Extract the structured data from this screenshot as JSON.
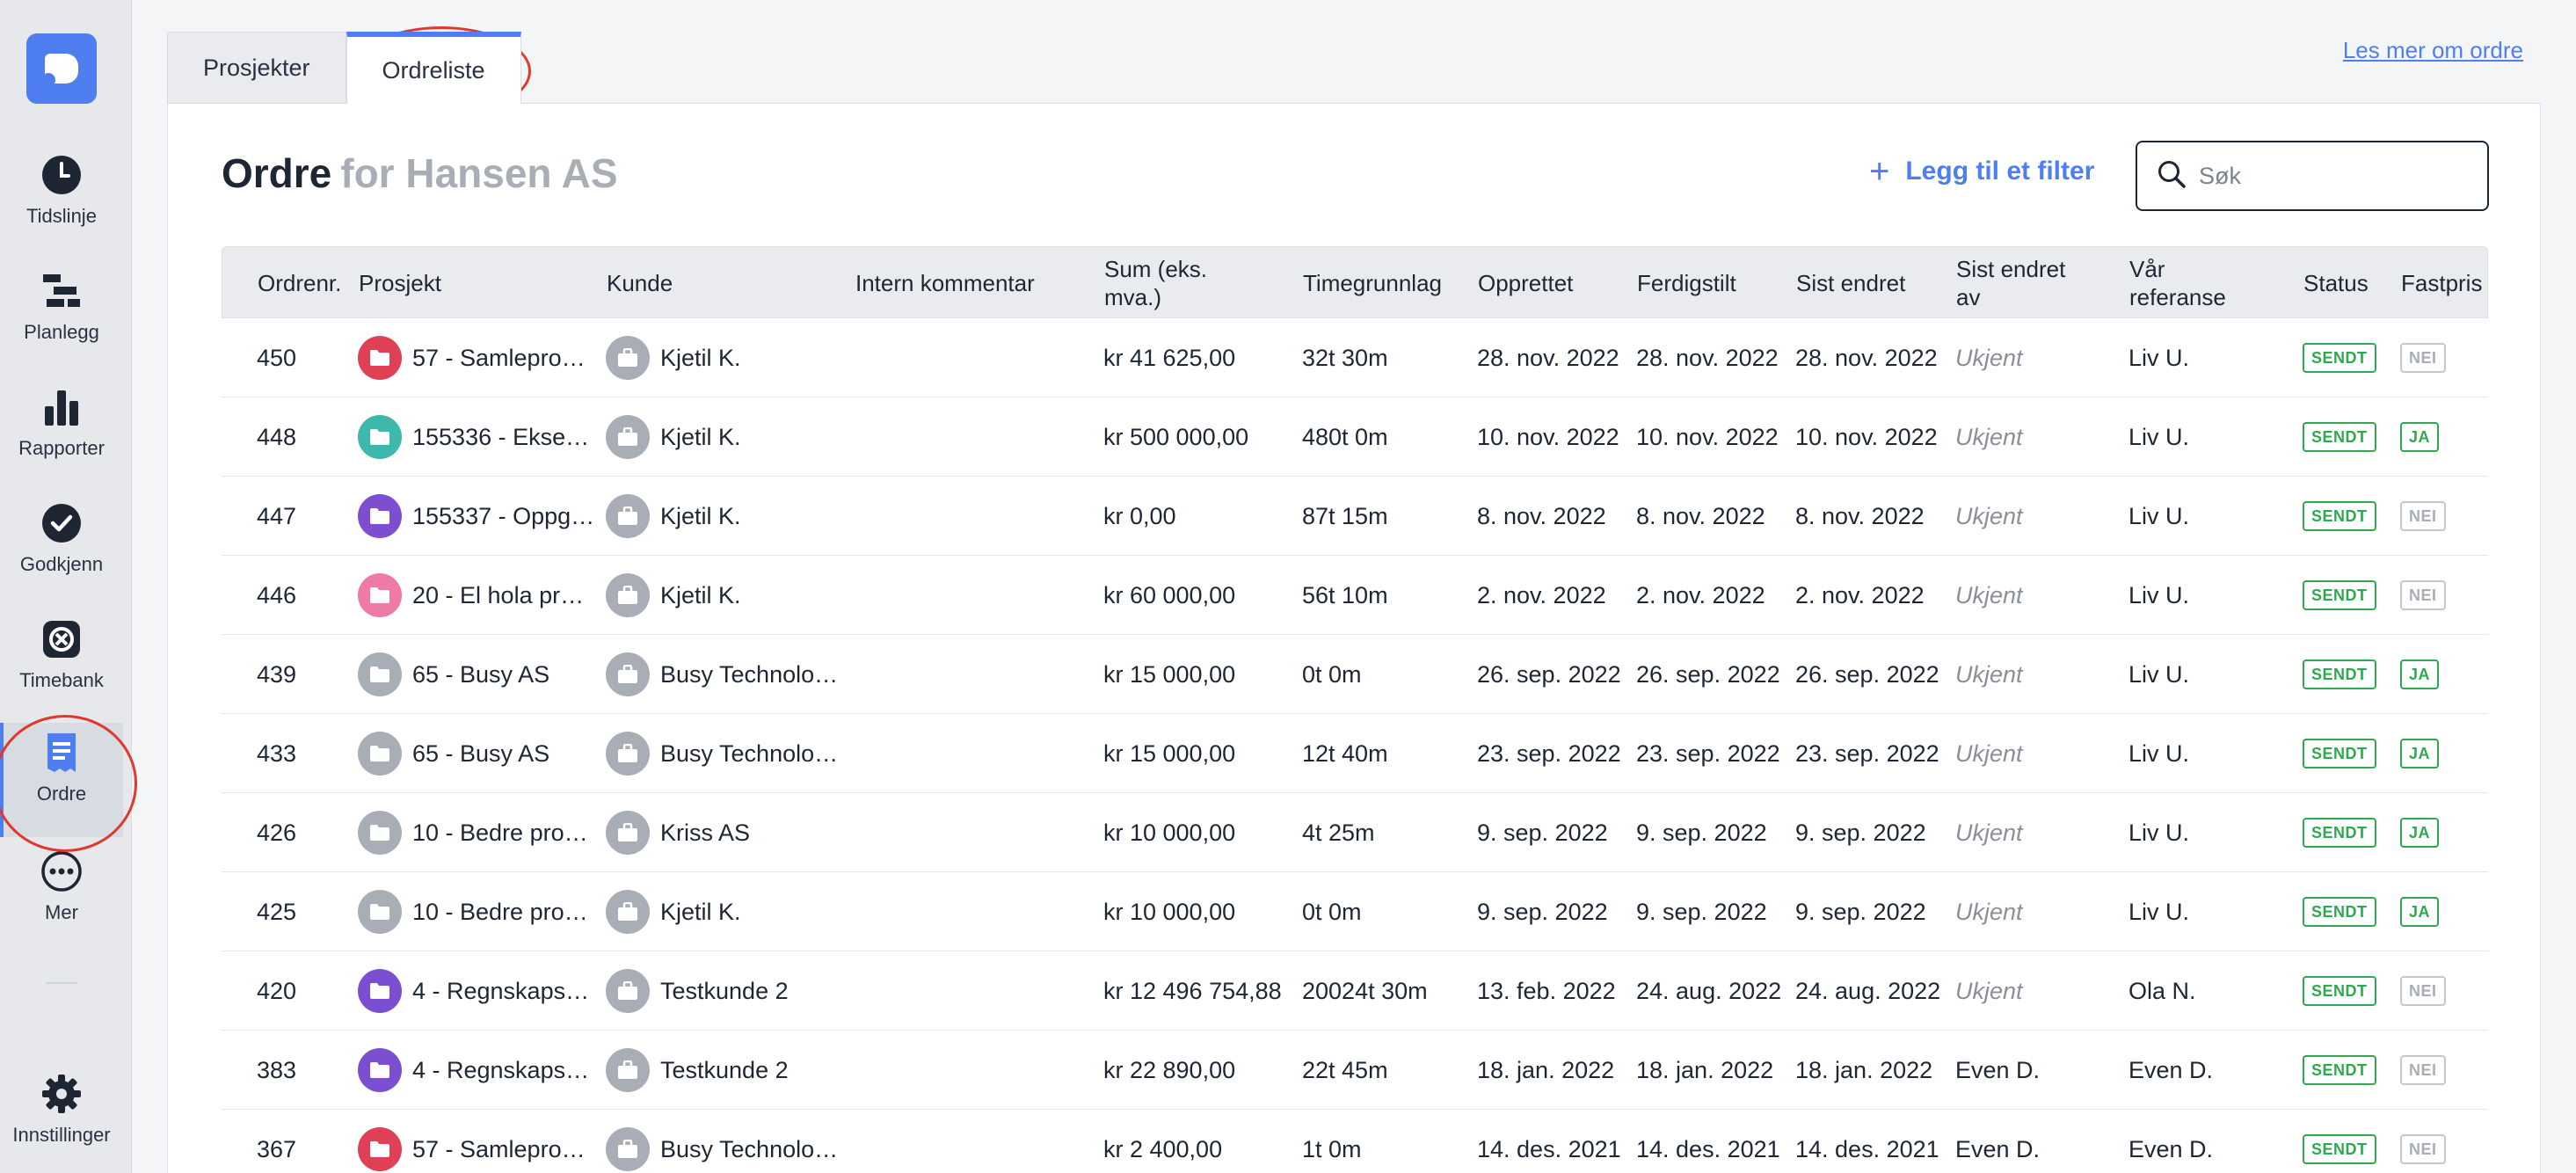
{
  "sidebar": {
    "items": [
      {
        "label": "Tidslinje",
        "icon": "clock-icon"
      },
      {
        "label": "Planlegg",
        "icon": "gantt-icon"
      },
      {
        "label": "Rapporter",
        "icon": "bar-chart-icon"
      },
      {
        "label": "Godkjenn",
        "icon": "check-circle-icon"
      },
      {
        "label": "Timebank",
        "icon": "timebank-icon"
      },
      {
        "label": "Ordre",
        "icon": "receipt-icon"
      },
      {
        "label": "Mer",
        "icon": "more-icon"
      }
    ],
    "settings_label": "Innstillinger"
  },
  "tabs": [
    {
      "label": "Prosjekter"
    },
    {
      "label": "Ordreliste"
    }
  ],
  "help_link": "Les mer om ordre",
  "page": {
    "title": "Ordre",
    "subtitle": "for Hansen AS",
    "filter_label": "Legg til et filter",
    "search_placeholder": "Søk"
  },
  "columns": [
    "Ordrenr.",
    "Prosjekt",
    "Kunde",
    "Intern kommentar",
    "Sum (eks. mva.)",
    "Timegrunnlag",
    "Opprettet",
    "Ferdigstilt",
    "Sist endret",
    "Sist endret av",
    "Vår referanse",
    "Status",
    "Fastpris"
  ],
  "colors": {
    "accent": "#4f7ef0",
    "status_green": "#2fa84f",
    "annotation_red": "#e0392b"
  },
  "rows": [
    {
      "nr": "450",
      "project": "57 - Samleprosj...",
      "project_color": "#e04055",
      "customer": "Kjetil K.",
      "comment": "",
      "sum": "kr 41 625,00",
      "hours": "32t 30m",
      "created": "28. nov. 2022",
      "finished": "28. nov. 2022",
      "changed": "28. nov. 2022",
      "changed_by": "Ukjent",
      "reference": "Liv U.",
      "status": "SENDT",
      "fixed": "NEI"
    },
    {
      "nr": "448",
      "project": "155336 - Eksem...",
      "project_color": "#3fb8ac",
      "customer": "Kjetil K.",
      "comment": "",
      "sum": "kr 500 000,00",
      "hours": "480t 0m",
      "created": "10. nov. 2022",
      "finished": "10. nov. 2022",
      "changed": "10. nov. 2022",
      "changed_by": "Ukjent",
      "reference": "Liv U.",
      "status": "SENDT",
      "fixed": "JA"
    },
    {
      "nr": "447",
      "project": "155337 - Oppga...",
      "project_color": "#7b4fd0",
      "customer": "Kjetil K.",
      "comment": "",
      "sum": "kr 0,00",
      "hours": "87t 15m",
      "created": "8. nov. 2022",
      "finished": "8. nov. 2022",
      "changed": "8. nov. 2022",
      "changed_by": "Ukjent",
      "reference": "Liv U.",
      "status": "SENDT",
      "fixed": "NEI"
    },
    {
      "nr": "446",
      "project": "20 - El hola proy...",
      "project_color": "#ee7aa6",
      "customer": "Kjetil K.",
      "comment": "",
      "sum": "kr 60 000,00",
      "hours": "56t 10m",
      "created": "2. nov. 2022",
      "finished": "2. nov. 2022",
      "changed": "2. nov. 2022",
      "changed_by": "Ukjent",
      "reference": "Liv U.",
      "status": "SENDT",
      "fixed": "NEI"
    },
    {
      "nr": "439",
      "project": "65 - Busy AS",
      "project_color": "#a8adb6",
      "customer": "Busy Technologi...",
      "comment": "",
      "sum": "kr 15 000,00",
      "hours": "0t 0m",
      "created": "26. sep. 2022",
      "finished": "26. sep. 2022",
      "changed": "26. sep. 2022",
      "changed_by": "Ukjent",
      "reference": "Liv U.",
      "status": "SENDT",
      "fixed": "JA"
    },
    {
      "nr": "433",
      "project": "65 - Busy AS",
      "project_color": "#a8adb6",
      "customer": "Busy Technologi...",
      "comment": "",
      "sum": "kr 15 000,00",
      "hours": "12t 40m",
      "created": "23. sep. 2022",
      "finished": "23. sep. 2022",
      "changed": "23. sep. 2022",
      "changed_by": "Ukjent",
      "reference": "Liv U.",
      "status": "SENDT",
      "fixed": "JA"
    },
    {
      "nr": "426",
      "project": "10 - Bedre prosj...",
      "project_color": "#a8adb6",
      "customer": "Kriss AS",
      "comment": "",
      "sum": "kr 10 000,00",
      "hours": "4t 25m",
      "created": "9. sep. 2022",
      "finished": "9. sep. 2022",
      "changed": "9. sep. 2022",
      "changed_by": "Ukjent",
      "reference": "Liv U.",
      "status": "SENDT",
      "fixed": "JA"
    },
    {
      "nr": "425",
      "project": "10 - Bedre prosj...",
      "project_color": "#a8adb6",
      "customer": "Kjetil K.",
      "comment": "",
      "sum": "kr 10 000,00",
      "hours": "0t 0m",
      "created": "9. sep. 2022",
      "finished": "9. sep. 2022",
      "changed": "9. sep. 2022",
      "changed_by": "Ukjent",
      "reference": "Liv U.",
      "status": "SENDT",
      "fixed": "JA"
    },
    {
      "nr": "420",
      "project": "4 - Regnskapsar...",
      "project_color": "#7b4fd0",
      "customer": "Testkunde 2",
      "comment": "",
      "sum": "kr 12 496 754,88",
      "hours": "20024t 30m",
      "created": "13. feb. 2022",
      "finished": "24. aug. 2022",
      "changed": "24. aug. 2022",
      "changed_by": "Ukjent",
      "reference": "Ola N.",
      "status": "SENDT",
      "fixed": "NEI"
    },
    {
      "nr": "383",
      "project": "4 - Regnskapsar...",
      "project_color": "#7b4fd0",
      "customer": "Testkunde 2",
      "comment": "",
      "sum": "kr 22 890,00",
      "hours": "22t 45m",
      "created": "18. jan. 2022",
      "finished": "18. jan. 2022",
      "changed": "18. jan. 2022",
      "changed_by": "Even D.",
      "reference": "Even D.",
      "status": "SENDT",
      "fixed": "NEI"
    },
    {
      "nr": "367",
      "project": "57 - Samleprosj...",
      "project_color": "#e04055",
      "customer": "Busy Technologi...",
      "comment": "",
      "sum": "kr 2 400,00",
      "hours": "1t 0m",
      "created": "14. des. 2021",
      "finished": "14. des. 2021",
      "changed": "14. des. 2021",
      "changed_by": "Even D.",
      "reference": "Even D.",
      "status": "SENDT",
      "fixed": "NEI"
    }
  ]
}
